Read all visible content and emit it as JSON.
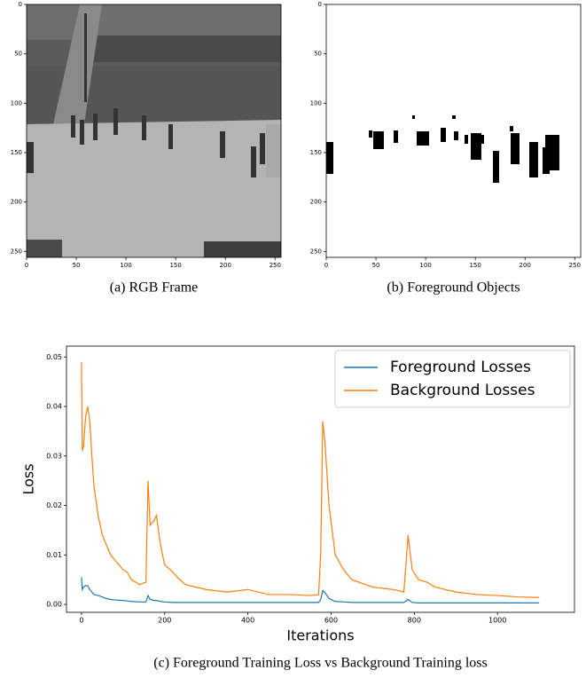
{
  "chart_data": [
    {
      "type": "image",
      "caption": "(a) RGB Frame",
      "xlim": [
        0,
        256
      ],
      "ylim": [
        256,
        0
      ],
      "xticks": [
        0,
        50,
        100,
        150,
        200,
        250
      ],
      "yticks": [
        0,
        50,
        100,
        150,
        200,
        250
      ]
    },
    {
      "type": "image",
      "caption": "(b) Foreground Objects",
      "xlim": [
        0,
        256
      ],
      "ylim": [
        256,
        0
      ],
      "xticks": [
        0,
        50,
        100,
        150,
        200,
        250
      ],
      "yticks": [
        0,
        50,
        100,
        150,
        200,
        250
      ]
    },
    {
      "type": "line",
      "caption": "(c) Foreground Training Loss vs Background Training loss",
      "x_label": "Iterations",
      "y_label": "Loss",
      "xlim": [
        -36,
        1185
      ],
      "ylim": [
        -0.0016,
        0.0522
      ],
      "xticks": [
        0,
        200,
        400,
        600,
        800,
        1000
      ],
      "yticks": [
        {
          "value": 0,
          "label": "0.00"
        },
        0.01,
        0.02,
        0.03,
        0.04,
        0.05
      ],
      "legend": "upper right",
      "x": [
        0,
        2,
        5,
        10,
        15,
        20,
        25,
        30,
        40,
        50,
        60,
        70,
        80,
        100,
        110,
        120,
        140,
        155,
        160,
        165,
        175,
        180,
        190,
        200,
        220,
        230,
        250,
        300,
        350,
        400,
        450,
        500,
        550,
        570,
        575,
        580,
        585,
        595,
        610,
        630,
        650,
        700,
        750,
        775,
        785,
        795,
        810,
        830,
        850,
        900,
        950,
        1000,
        1050,
        1100
      ],
      "series": [
        {
          "name": "Foreground Losses",
          "color": "#1f77b4",
          "values": [
            0.0055,
            0.003,
            0.0035,
            0.0038,
            0.0038,
            0.003,
            0.0025,
            0.002,
            0.0018,
            0.0015,
            0.0012,
            0.001,
            0.0009,
            0.0008,
            0.0007,
            0.0006,
            0.0005,
            0.0005,
            0.0018,
            0.001,
            0.0008,
            0.0008,
            0.0006,
            0.0005,
            0.0004,
            0.0004,
            0.0004,
            0.0004,
            0.0004,
            0.0004,
            0.0004,
            0.0004,
            0.0004,
            0.0004,
            0.001,
            0.0028,
            0.0024,
            0.0012,
            0.0006,
            0.0005,
            0.0004,
            0.0004,
            0.0004,
            0.0004,
            0.001,
            0.0004,
            0.0003,
            0.0003,
            0.0003,
            0.0003,
            0.0003,
            0.0003,
            0.0003,
            0.0003
          ]
        },
        {
          "name": "Background Losses",
          "color": "#ff7f0e",
          "values": [
            0.049,
            0.031,
            0.032,
            0.038,
            0.04,
            0.037,
            0.03,
            0.024,
            0.018,
            0.014,
            0.012,
            0.01,
            0.009,
            0.007,
            0.0065,
            0.005,
            0.004,
            0.0045,
            0.025,
            0.016,
            0.017,
            0.018,
            0.012,
            0.008,
            0.0065,
            0.0055,
            0.004,
            0.003,
            0.0025,
            0.003,
            0.002,
            0.002,
            0.0018,
            0.002,
            0.01,
            0.037,
            0.033,
            0.02,
            0.01,
            0.007,
            0.005,
            0.0035,
            0.003,
            0.0025,
            0.014,
            0.007,
            0.005,
            0.0045,
            0.0035,
            0.0025,
            0.002,
            0.0018,
            0.0015,
            0.0014
          ]
        }
      ]
    }
  ]
}
